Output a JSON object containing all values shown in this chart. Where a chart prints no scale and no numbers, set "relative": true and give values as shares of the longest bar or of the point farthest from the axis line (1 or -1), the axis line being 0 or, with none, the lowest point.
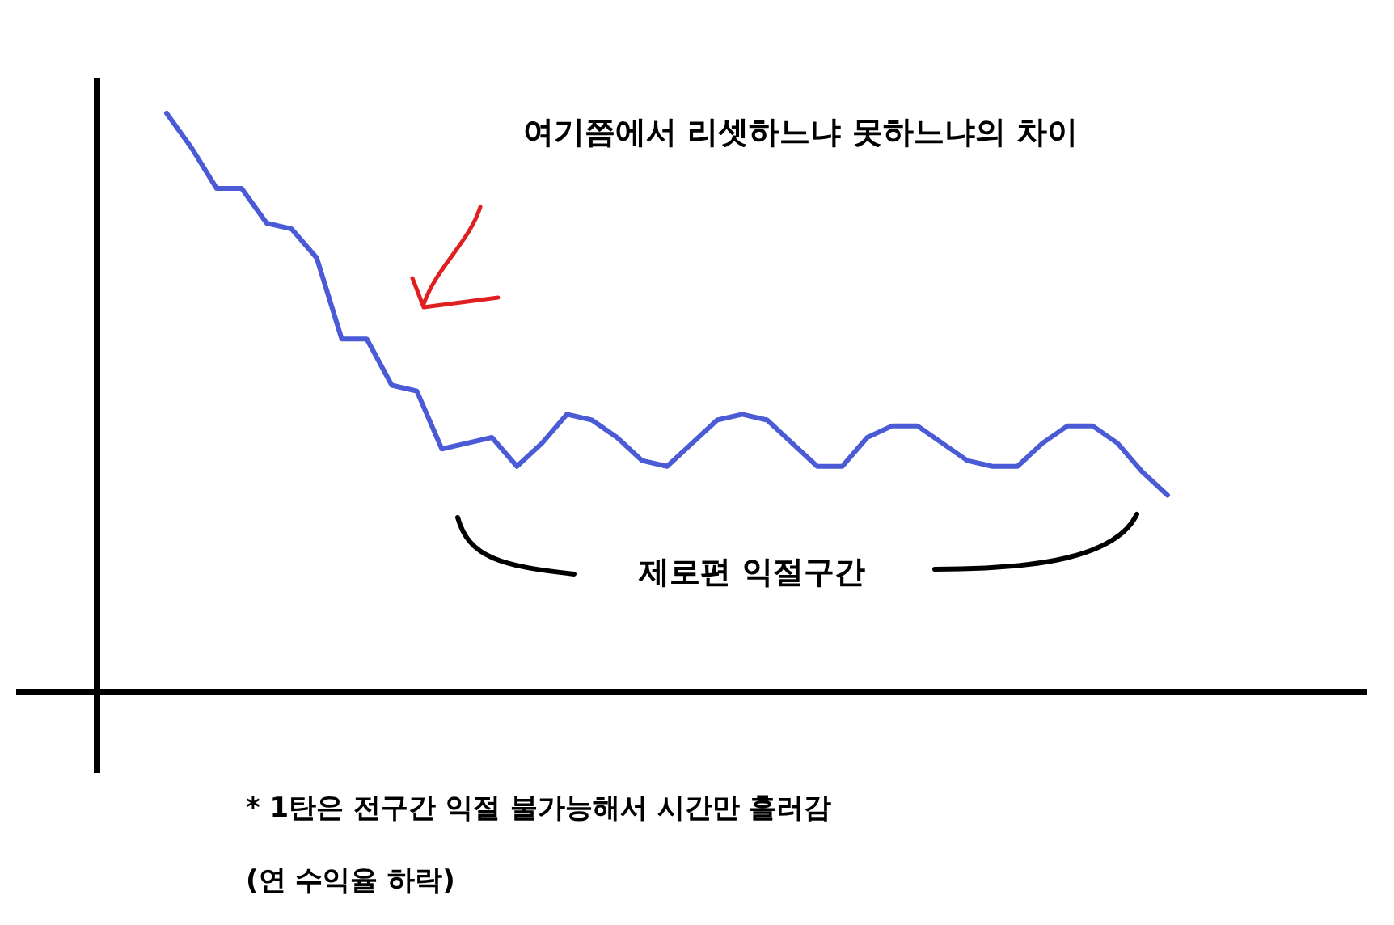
{
  "chart_data": {
    "type": "line",
    "relative": true,
    "categories": [
      null,
      null,
      null,
      null,
      null,
      null,
      null,
      null,
      null,
      null,
      null,
      null,
      null,
      null,
      null,
      null,
      null,
      null,
      null,
      null,
      null,
      null,
      null,
      null,
      null,
      null,
      null,
      null,
      null,
      null,
      null,
      null,
      null,
      null,
      null,
      null,
      null,
      null,
      null,
      null,
      null
    ],
    "series": [
      {
        "color": "#4b5bd6",
        "values": [
          1.0,
          0.94,
          0.87,
          0.87,
          0.81,
          0.8,
          0.75,
          0.61,
          0.61,
          0.53,
          0.52,
          0.42,
          0.43,
          0.44,
          0.39,
          0.43,
          0.48,
          0.47,
          0.44,
          0.4,
          0.39,
          0.43,
          0.47,
          0.48,
          0.47,
          0.43,
          0.39,
          0.39,
          0.44,
          0.46,
          0.46,
          0.43,
          0.4,
          0.39,
          0.39,
          0.43,
          0.46,
          0.46,
          0.43,
          0.38,
          0.34
        ]
      }
    ],
    "annotations": [
      "여기쯤에서 리셋하느냐 못하느냐의 차이",
      "제로편 익절구간",
      "* 1탄은 전구간 익절 불가능해서 시간만 흘러감",
      "(연 수익율 하락)"
    ]
  }
}
